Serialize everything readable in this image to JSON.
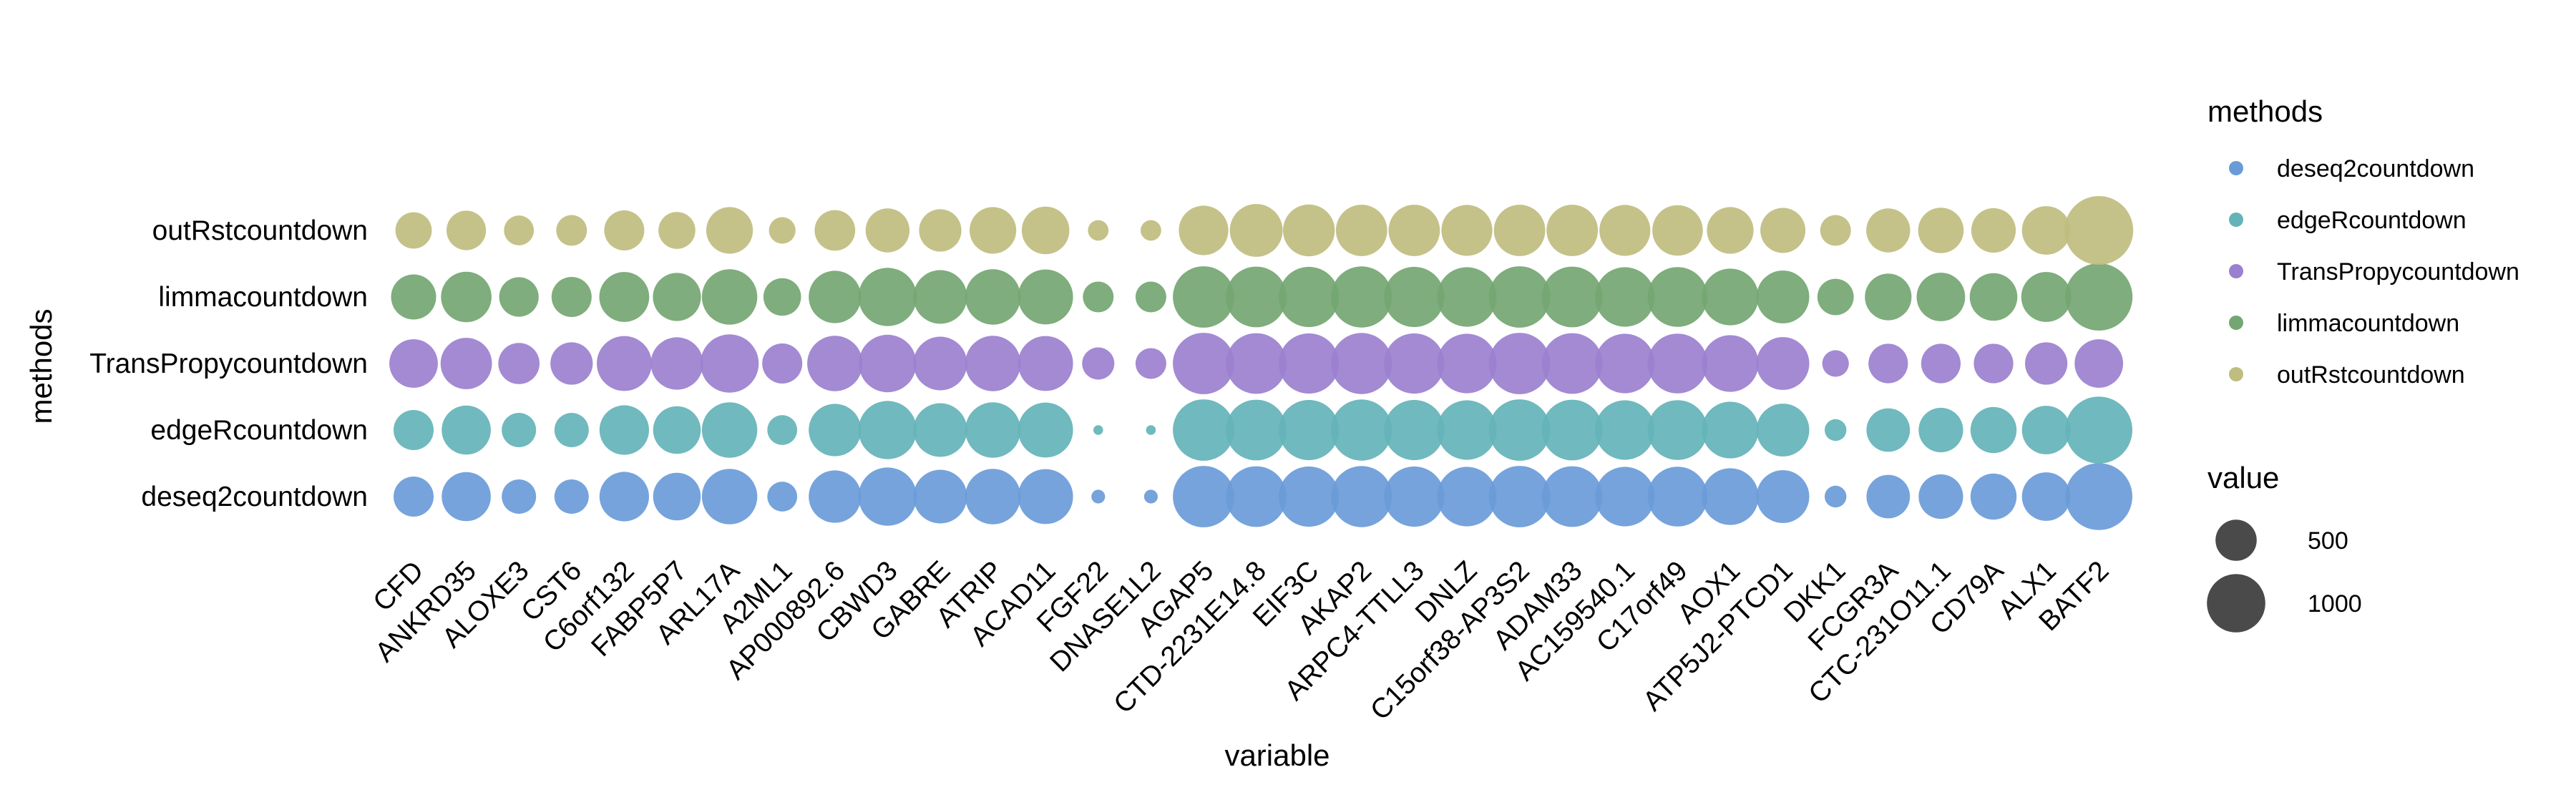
{
  "chart_data": {
    "type": "scatter",
    "xlabel": "variable",
    "ylabel": "methods",
    "categories": [
      "CFD",
      "ANKRD35",
      "ALOXE3",
      "CST6",
      "C6orf132",
      "FABP5P7",
      "ARL17A",
      "A2ML1",
      "AP000892.6",
      "CBWD3",
      "GABRE",
      "ATRIP",
      "ACAD11",
      "FGF22",
      "DNASE1L2",
      "AGAP5",
      "CTD-2231E14.8",
      "EIF3C",
      "AKAP2",
      "ARPC4-TTLL3",
      "DNLZ",
      "C15orf38-AP3S2",
      "ADAM33",
      "AC159540.1",
      "C17orf49",
      "AOX1",
      "ATP5J2-PTCD1",
      "DKK1",
      "FCGR3A",
      "CTC-231O11.1",
      "CD79A",
      "ALX1",
      "BATF2"
    ],
    "methods": [
      "deseq2countdown",
      "edgeRcountdown",
      "TransPropycountdown",
      "limmacountdown",
      "outRstcountdown"
    ],
    "colors": {
      "deseq2countdown": "#6a9bd8",
      "edgeRcountdown": "#64b3b8",
      "TransPropycountdown": "#9b80cf",
      "limmacountdown": "#74a672",
      "outRstcountdown": "#bfbd7f"
    },
    "series": [
      {
        "name": "deseq2countdown",
        "values": [
          340,
          510,
          250,
          250,
          520,
          480,
          650,
          190,
          580,
          720,
          610,
          650,
          640,
          40,
          40,
          800,
          780,
          770,
          790,
          770,
          750,
          800,
          780,
          750,
          760,
          680,
          590,
          100,
          400,
          420,
          450,
          500,
          950
        ]
      },
      {
        "name": "edgeRcountdown",
        "values": [
          340,
          510,
          250,
          250,
          520,
          480,
          650,
          190,
          580,
          720,
          610,
          650,
          640,
          20,
          20,
          800,
          780,
          770,
          790,
          770,
          750,
          800,
          780,
          750,
          760,
          680,
          590,
          100,
          400,
          420,
          450,
          500,
          950
        ]
      },
      {
        "name": "TransPropycountdown",
        "values": [
          500,
          560,
          360,
          380,
          640,
          580,
          720,
          340,
          650,
          700,
          610,
          650,
          640,
          220,
          200,
          800,
          780,
          770,
          790,
          770,
          750,
          800,
          780,
          750,
          760,
          680,
          590,
          150,
          330,
          330,
          330,
          380,
          500
        ]
      },
      {
        "name": "limmacountdown",
        "values": [
          430,
          540,
          330,
          340,
          530,
          490,
          650,
          300,
          580,
          720,
          610,
          650,
          640,
          200,
          200,
          800,
          780,
          770,
          790,
          770,
          750,
          800,
          780,
          750,
          760,
          680,
          590,
          280,
          460,
          500,
          480,
          530,
          960
        ]
      },
      {
        "name": "outRstcountdown",
        "values": [
          280,
          330,
          190,
          200,
          340,
          290,
          460,
          150,
          350,
          410,
          380,
          460,
          480,
          90,
          90,
          520,
          590,
          570,
          560,
          560,
          550,
          560,
          560,
          550,
          540,
          460,
          430,
          200,
          410,
          440,
          420,
          500,
          1000
        ]
      }
    ],
    "legend": {
      "color_title": "methods",
      "color_entries": [
        "deseq2countdown",
        "edgeRcountdown",
        "TransPropycountdown",
        "limmacountdown",
        "outRstcountdown"
      ],
      "size_title": "value",
      "size_entries": [
        500,
        1000
      ],
      "placement": "right"
    },
    "grid": false,
    "size_scale_max": 1000
  }
}
